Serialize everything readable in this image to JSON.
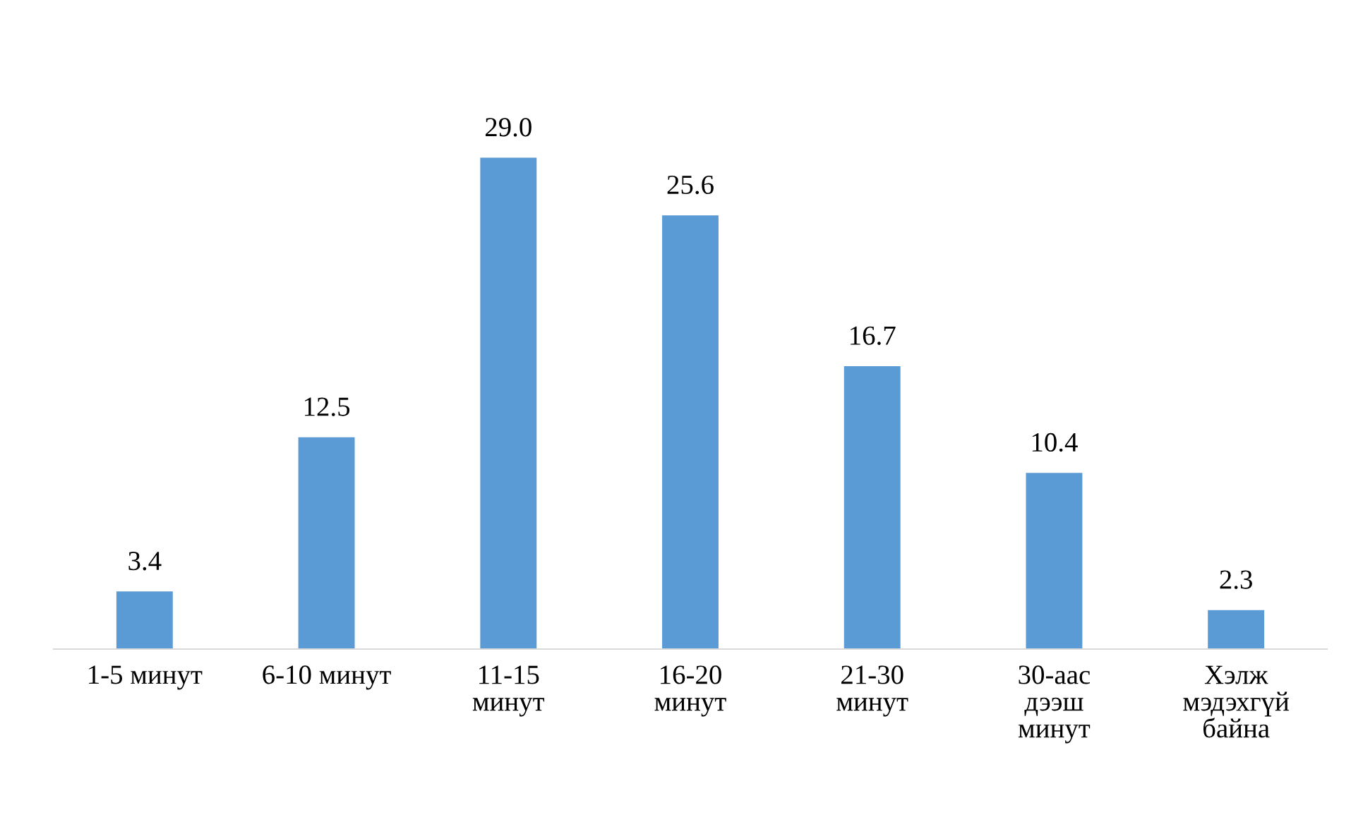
{
  "chart_data": {
    "type": "bar",
    "categories": [
      "1-5 минут",
      "6-10 минут",
      "11-15\nминут",
      "16-20\nминут",
      "21-30\nминут",
      "30-аас\nдээш\nминут",
      "Хэлж\nмэдэхгүй\nбайна"
    ],
    "values": [
      3.4,
      12.5,
      29.0,
      25.6,
      16.7,
      10.4,
      2.3
    ],
    "value_labels": [
      "3.4",
      "12.5",
      "29.0",
      "25.6",
      "16.7",
      "10.4",
      "2.3"
    ],
    "color": "#5b9bd5",
    "grid": false,
    "legend": false
  }
}
